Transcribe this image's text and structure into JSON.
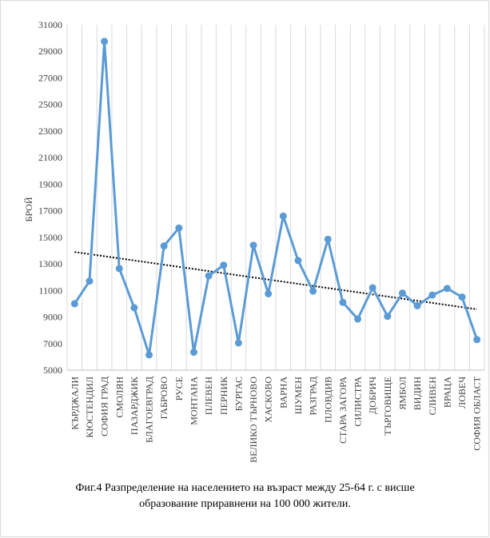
{
  "chart_data": {
    "type": "line",
    "title": "",
    "xlabel": "",
    "ylabel": "БРОЙ",
    "ylim": [
      5000,
      31000
    ],
    "yticks": [
      5000,
      7000,
      9000,
      11000,
      13000,
      15000,
      17000,
      19000,
      21000,
      23000,
      25000,
      27000,
      29000,
      31000
    ],
    "grid": "vertical",
    "trendline": "linear",
    "categories": [
      "КЪРДЖАЛИ",
      "КЮСТЕНДИЛ",
      "СОФИЯ ГРАД",
      "СМОЛЯН",
      "ПАЗАРДЖИК",
      "БЛАГОЕВГРАД",
      "ГАБРОВО",
      "РУСЕ",
      "МОНТАНА",
      "ПЛЕВЕН",
      "ПЕРНИК",
      "БУРГАС",
      "ВЕЛИКО ТЪРНОВО",
      "ХАСКОВО",
      "ВАРНА",
      "ШУМЕН",
      "РАЗГРАД",
      "ПЛОВДИВ",
      "СТАРА ЗАГОРА",
      "СИЛИСТРА",
      "ДОБРИЧ",
      "ТЪРГОВИЩЕ",
      "ЯМБОЛ",
      "ВИДИН",
      "СЛИВЕН",
      "ВРАЦА",
      "ЛОВЕЧ",
      "СОФИЯ ОБЛАСТ"
    ],
    "series": [
      {
        "name": "",
        "color": "#5b9bd5",
        "values": [
          10000,
          11700,
          29750,
          12650,
          9700,
          6150,
          14350,
          15700,
          6350,
          12100,
          12900,
          7050,
          14400,
          10750,
          16600,
          13250,
          10950,
          14850,
          10100,
          8850,
          11200,
          9050,
          10800,
          9850,
          10650,
          11150,
          10500,
          7300
        ]
      }
    ],
    "trend_color": "#000000",
    "caption_line1": "Фиг.4 Разпределение на населението на възраст между 25-64 г.  с висше",
    "caption_line2": "образование приравнени на 100 000 жители."
  }
}
